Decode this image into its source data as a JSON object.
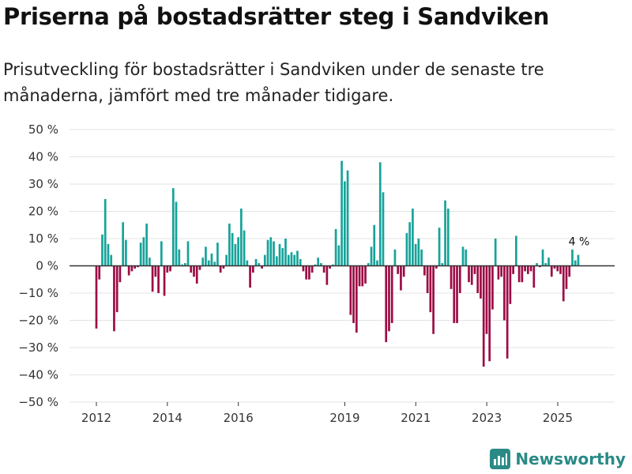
{
  "title": "Priserna på bostadsrätter steg i Sandviken",
  "subtitle": "Prisutveckling för bostadsrätter i Sandviken under de senaste tre månaderna, jämfört med tre månader tidigare.",
  "brand": "Newsworthy",
  "chart_data": {
    "type": "bar",
    "title": "Priserna på bostadsrätter steg i Sandviken",
    "xlabel": "",
    "ylabel": "",
    "x_range": [
      2011.0,
      2026.5
    ],
    "ylim": [
      -50,
      50
    ],
    "y_ticks": [
      50,
      40,
      30,
      20,
      10,
      0,
      -10,
      -20,
      -30,
      -40,
      -50
    ],
    "y_tick_labels": [
      "50 %",
      "40 %",
      "30 %",
      "20 %",
      "10 %",
      "0 %",
      "−10 %",
      "−20 %",
      "−30 %",
      "−40 %",
      "−50 %"
    ],
    "x_ticks": [
      2012,
      2014,
      2016,
      2019,
      2021,
      2023,
      2025
    ],
    "x_tick_labels": [
      "2012",
      "2014",
      "2016",
      "2019",
      "2021",
      "2023",
      "2025"
    ],
    "positive_color": "#16a39a",
    "negative_color": "#9c0b45",
    "annotation": "4 %",
    "series": [
      {
        "name": "Prisutveckling",
        "x_start": 2012.0,
        "step": 0.0833,
        "values": [
          -23,
          -5,
          11.5,
          24.5,
          8,
          4,
          -24,
          -17,
          -6,
          16,
          9.5,
          -3.5,
          -2,
          -1,
          -0.5,
          8.5,
          10.5,
          15.5,
          3,
          -9.5,
          -4,
          -10,
          9,
          -11,
          -2.5,
          -2,
          28.5,
          23.5,
          6,
          0.5,
          1,
          9,
          -2.5,
          -4,
          -6.5,
          -1.5,
          3,
          7,
          2,
          4.5,
          1.5,
          8.5,
          -2.5,
          -1,
          4,
          15.5,
          12,
          8,
          10.5,
          21,
          13,
          2,
          -8,
          -2.5,
          2.5,
          1,
          -1,
          4,
          9.5,
          10.5,
          9,
          3.5,
          8,
          6.5,
          10,
          4,
          5,
          4,
          5.5,
          2.5,
          -2,
          -5,
          -5,
          -2.5,
          0.5,
          3,
          1,
          -2.5,
          -7,
          -1,
          0.5,
          13.5,
          7.5,
          38.5,
          31,
          35,
          -18,
          -21,
          -24.5,
          -7.5,
          -7.5,
          -6.5,
          1,
          7,
          15,
          2,
          38,
          27,
          -28,
          -24,
          -21,
          6,
          -3,
          -9,
          -4,
          12,
          16,
          21,
          8,
          10,
          6,
          -3.5,
          -10,
          -17,
          -25,
          -1,
          14,
          1,
          24,
          21,
          -8.5,
          -21,
          -21,
          -10,
          7,
          6,
          -6,
          -7,
          -3,
          -10,
          -12,
          -37,
          -25,
          -35,
          -16,
          10,
          -5,
          -4,
          -20,
          -34,
          -14,
          -3,
          11,
          -6,
          -6,
          -2,
          -3,
          -2,
          -8,
          1,
          -0.5,
          6,
          1,
          3,
          -4,
          -1,
          -2,
          -3,
          -13,
          -8.5,
          -4,
          6,
          2,
          4
        ]
      }
    ]
  }
}
